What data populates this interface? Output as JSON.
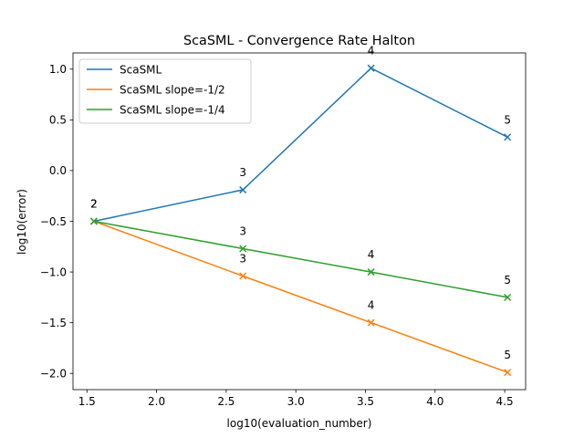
{
  "chart_data": {
    "type": "line",
    "title": "ScaSML - Convergence Rate Halton",
    "xlabel": "log10(evaluation_number)",
    "ylabel": "log10(error)",
    "xlim": [
      1.4,
      4.65
    ],
    "ylim": [
      -2.16,
      1.16
    ],
    "xticks": [
      1.5,
      2.0,
      2.5,
      3.0,
      3.5,
      4.0,
      4.5
    ],
    "xtick_labels": [
      "1.5",
      "2.0",
      "2.5",
      "3.0",
      "3.5",
      "4.0",
      "4.5"
    ],
    "yticks": [
      -2.0,
      -1.5,
      -1.0,
      -0.5,
      0.0,
      0.5,
      1.0
    ],
    "ytick_labels": [
      "−2.0",
      "−1.5",
      "−1.0",
      "−0.5",
      "0.0",
      "0.5",
      "1.0"
    ],
    "grid": false,
    "legend_position": "top-left",
    "marker": "x",
    "series": [
      {
        "name": "ScaSML",
        "color": "#1f77b4",
        "x": [
          1.55,
          2.62,
          3.54,
          4.52
        ],
        "y": [
          -0.5,
          -0.19,
          1.01,
          0.33
        ],
        "labels": [
          "2",
          "3",
          "4",
          "5"
        ]
      },
      {
        "name": "ScaSML slope=-1/2",
        "color": "#ff7f0e",
        "x": [
          1.55,
          2.62,
          3.54,
          4.52
        ],
        "y": [
          -0.5,
          -1.04,
          -1.5,
          -1.99
        ],
        "labels": [
          "2",
          "3",
          "4",
          "5"
        ]
      },
      {
        "name": "ScaSML slope=-1/4",
        "color": "#2ca02c",
        "x": [
          1.55,
          2.62,
          3.54,
          4.52
        ],
        "y": [
          -0.5,
          -0.77,
          -1.0,
          -1.25
        ],
        "labels": [
          "2",
          "3",
          "4",
          "5"
        ]
      }
    ]
  }
}
